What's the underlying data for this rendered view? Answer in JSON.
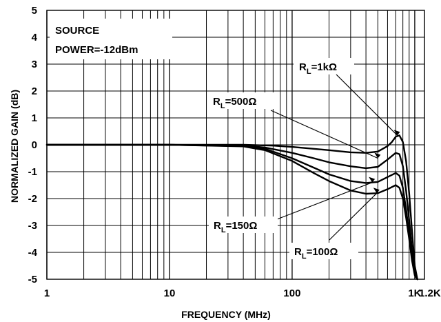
{
  "chart_data": {
    "type": "line",
    "title": "",
    "xlabel": "FREQUENCY (MHz)",
    "ylabel": "NORMALIZED GAIN (dB)",
    "xscale": "log",
    "xlim": [
      1,
      1200
    ],
    "ylim": [
      -5,
      5
    ],
    "x_ticks": [
      {
        "value": 1,
        "label": "1"
      },
      {
        "value": 10,
        "label": "10"
      },
      {
        "value": 100,
        "label": "100"
      },
      {
        "value": 1000,
        "label": "1K"
      },
      {
        "value": 1200,
        "label": "1.2K"
      }
    ],
    "y_ticks": [
      {
        "value": 5,
        "label": "5"
      },
      {
        "value": 4,
        "label": "4"
      },
      {
        "value": 3,
        "label": "3"
      },
      {
        "value": 2,
        "label": "2"
      },
      {
        "value": 1,
        "label": "1"
      },
      {
        "value": 0,
        "label": "0"
      },
      {
        "value": -1,
        "label": "-1"
      },
      {
        "value": -2,
        "label": "-2"
      },
      {
        "value": -3,
        "label": "-3"
      },
      {
        "value": -4,
        "label": "-4"
      },
      {
        "value": -5,
        "label": "-5"
      }
    ],
    "grid": true,
    "annotation_box": [
      "SOURCE",
      "POWER=-12dBm"
    ],
    "series": [
      {
        "name": "R_L=1kΩ",
        "label_main": "R",
        "label_sub": "L",
        "label_rest": "=1kΩ",
        "x": [
          1,
          10,
          40,
          70,
          100,
          150,
          200,
          300,
          400,
          500,
          600,
          650,
          700,
          750,
          800,
          850,
          900,
          950,
          1000,
          1050
        ],
        "y": [
          0,
          0,
          0,
          -0.03,
          -0.08,
          -0.15,
          -0.2,
          -0.28,
          -0.3,
          -0.25,
          -0.05,
          0.1,
          0.3,
          0.35,
          0.1,
          -0.6,
          -1.8,
          -3.2,
          -4.5,
          -5
        ]
      },
      {
        "name": "R_L=500Ω",
        "label_main": "R",
        "label_sub": "L",
        "label_rest": "=500Ω",
        "x": [
          1,
          10,
          40,
          60,
          100,
          150,
          200,
          300,
          400,
          500,
          600,
          700,
          750,
          800,
          850,
          900,
          950,
          1000,
          1050
        ],
        "y": [
          0,
          0,
          -0.03,
          -0.1,
          -0.3,
          -0.5,
          -0.65,
          -0.8,
          -0.87,
          -0.82,
          -0.55,
          -0.3,
          -0.35,
          -0.8,
          -1.7,
          -2.8,
          -3.9,
          -4.7,
          -5
        ]
      },
      {
        "name": "R_L=150Ω",
        "label_main": "R",
        "label_sub": "L",
        "label_rest": "=150Ω",
        "x": [
          1,
          10,
          40,
          60,
          100,
          150,
          200,
          300,
          400,
          500,
          600,
          700,
          750,
          800,
          850,
          900,
          950,
          1000,
          1050
        ],
        "y": [
          0,
          0,
          -0.05,
          -0.15,
          -0.5,
          -0.85,
          -1.1,
          -1.35,
          -1.42,
          -1.38,
          -1.2,
          -1.05,
          -1.15,
          -1.6,
          -2.4,
          -3.3,
          -4.2,
          -4.8,
          -5
        ]
      },
      {
        "name": "R_L=100Ω",
        "label_main": "R",
        "label_sub": "L",
        "label_rest": "=100Ω",
        "x": [
          1,
          10,
          40,
          60,
          100,
          150,
          200,
          300,
          400,
          500,
          600,
          700,
          750,
          800,
          850,
          900,
          950,
          1000,
          1050
        ],
        "y": [
          0,
          0,
          -0.06,
          -0.2,
          -0.6,
          -1.05,
          -1.35,
          -1.7,
          -1.82,
          -1.8,
          -1.65,
          -1.5,
          -1.6,
          -2.0,
          -2.7,
          -3.5,
          -4.3,
          -4.85,
          -5
        ]
      }
    ]
  }
}
